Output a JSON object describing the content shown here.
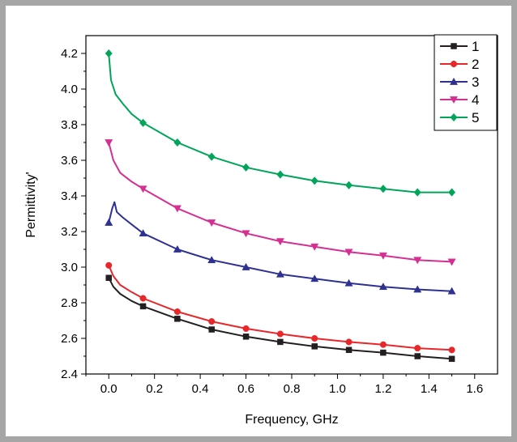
{
  "chart_data": {
    "type": "line",
    "title": "",
    "xlabel": "Frequency, GHz",
    "ylabel": "Permittivity'",
    "xlim": [
      -0.1,
      1.7
    ],
    "ylim": [
      2.4,
      4.3
    ],
    "xticks": [
      0.0,
      0.2,
      0.4,
      0.6,
      0.8,
      1.0,
      1.2,
      1.4,
      1.6
    ],
    "xtick_labels": [
      "0.0",
      "0.2",
      "0.4",
      "0.6",
      "0.8",
      "1.0",
      "1.2",
      "1.4",
      "1.6"
    ],
    "yticks": [
      2.4,
      2.6,
      2.8,
      3.0,
      3.2,
      3.4,
      3.6,
      3.8,
      4.0,
      4.2
    ],
    "ytick_labels": [
      "2.4",
      "2.6",
      "2.8",
      "3.0",
      "3.2",
      "3.4",
      "3.6",
      "3.8",
      "4.0",
      "4.2"
    ],
    "grid": false,
    "legend_position": "top-right",
    "marker_x": [
      0.0,
      0.15,
      0.3,
      0.45,
      0.6,
      0.75,
      0.9,
      1.05,
      1.2,
      1.35,
      1.5
    ],
    "series": [
      {
        "name": "1",
        "color": "#231f20",
        "marker": "square",
        "curve_x": [
          0.0,
          0.02,
          0.05,
          0.1,
          0.15,
          0.3,
          0.45,
          0.6,
          0.75,
          0.9,
          1.05,
          1.2,
          1.35,
          1.5
        ],
        "curve_y": [
          2.94,
          2.89,
          2.85,
          2.81,
          2.78,
          2.71,
          2.65,
          2.61,
          2.58,
          2.555,
          2.535,
          2.52,
          2.5,
          2.485
        ],
        "values": [
          2.94,
          2.78,
          2.71,
          2.65,
          2.61,
          2.58,
          2.555,
          2.535,
          2.52,
          2.5,
          2.485
        ]
      },
      {
        "name": "2",
        "color": "#e8272a",
        "marker": "circle",
        "curve_x": [
          0.0,
          0.02,
          0.05,
          0.1,
          0.15,
          0.3,
          0.45,
          0.6,
          0.75,
          0.9,
          1.05,
          1.2,
          1.35,
          1.5
        ],
        "curve_y": [
          3.01,
          2.95,
          2.9,
          2.86,
          2.825,
          2.75,
          2.695,
          2.655,
          2.625,
          2.6,
          2.58,
          2.565,
          2.545,
          2.535
        ],
        "values": [
          3.01,
          2.825,
          2.75,
          2.695,
          2.655,
          2.625,
          2.6,
          2.58,
          2.565,
          2.545,
          2.535
        ]
      },
      {
        "name": "3",
        "color": "#2e3092",
        "marker": "triangle-up",
        "curve_x": [
          0.0,
          0.015,
          0.025,
          0.035,
          0.06,
          0.1,
          0.15,
          0.3,
          0.45,
          0.6,
          0.75,
          0.9,
          1.05,
          1.2,
          1.35,
          1.5
        ],
        "curve_y": [
          3.25,
          3.33,
          3.365,
          3.31,
          3.28,
          3.24,
          3.19,
          3.1,
          3.04,
          3.0,
          2.96,
          2.935,
          2.91,
          2.89,
          2.875,
          2.865
        ],
        "values": [
          3.25,
          3.19,
          3.1,
          3.04,
          3.0,
          2.96,
          2.935,
          2.91,
          2.89,
          2.875,
          2.865
        ]
      },
      {
        "name": "4",
        "color": "#d62f92",
        "marker": "triangle-down",
        "curve_x": [
          0.0,
          0.02,
          0.05,
          0.1,
          0.15,
          0.3,
          0.45,
          0.6,
          0.75,
          0.9,
          1.05,
          1.2,
          1.35,
          1.5
        ],
        "curve_y": [
          3.7,
          3.6,
          3.53,
          3.48,
          3.44,
          3.33,
          3.25,
          3.19,
          3.145,
          3.115,
          3.085,
          3.065,
          3.04,
          3.03
        ],
        "values": [
          3.7,
          3.44,
          3.33,
          3.25,
          3.19,
          3.145,
          3.115,
          3.085,
          3.065,
          3.04,
          3.03
        ]
      },
      {
        "name": "5",
        "color": "#00a55a",
        "marker": "diamond",
        "curve_x": [
          0.0,
          0.01,
          0.03,
          0.06,
          0.1,
          0.15,
          0.3,
          0.45,
          0.6,
          0.75,
          0.9,
          1.05,
          1.2,
          1.35,
          1.5
        ],
        "curve_y": [
          4.2,
          4.05,
          3.97,
          3.92,
          3.86,
          3.81,
          3.7,
          3.62,
          3.56,
          3.52,
          3.485,
          3.46,
          3.44,
          3.42,
          3.42
        ],
        "values": [
          4.2,
          3.81,
          3.7,
          3.62,
          3.56,
          3.52,
          3.485,
          3.46,
          3.44,
          3.42,
          3.42
        ]
      }
    ]
  }
}
